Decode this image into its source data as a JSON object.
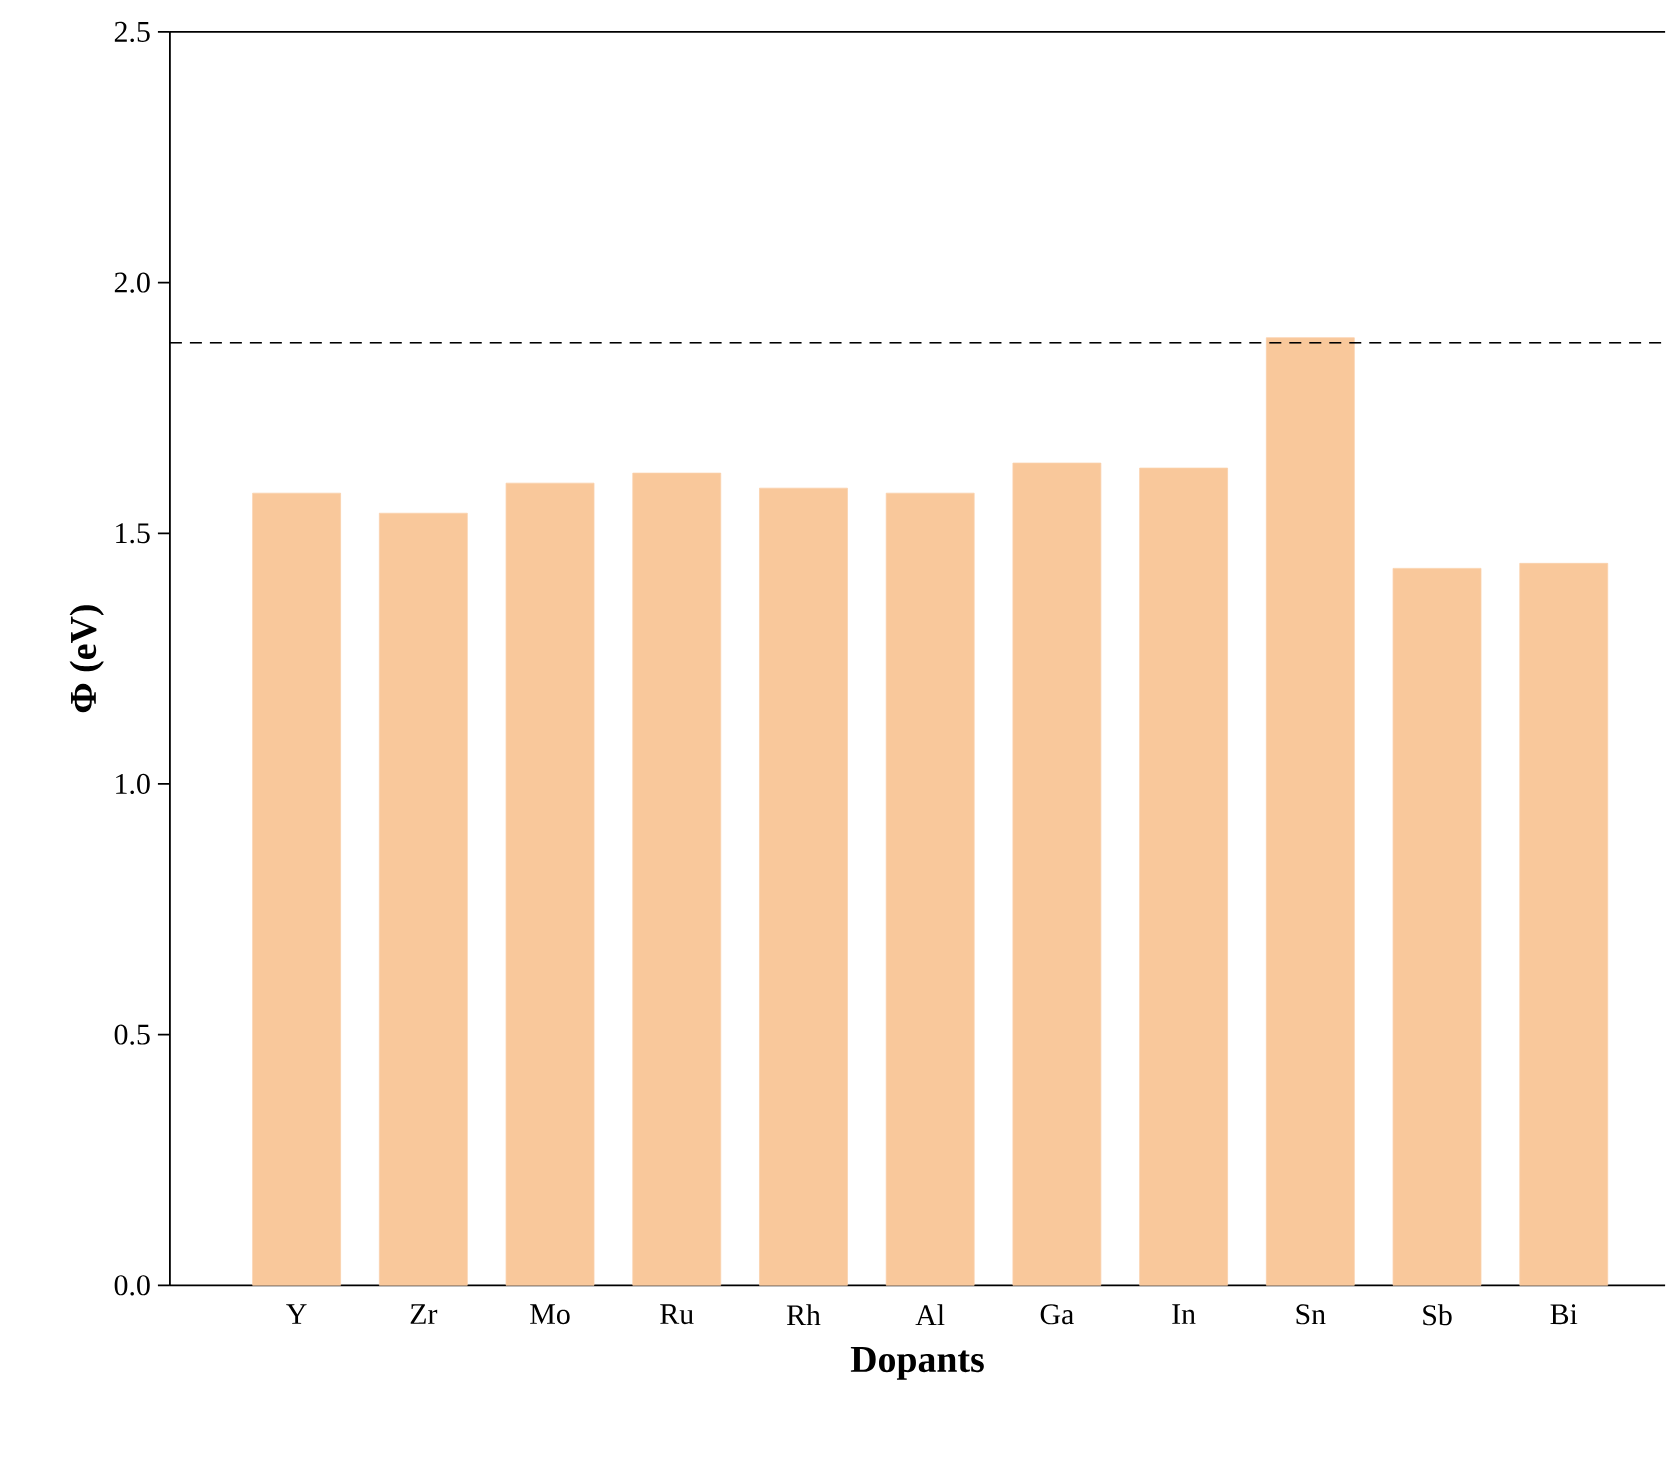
{
  "chart_data": {
    "type": "bar",
    "xlabel": "Dopants",
    "ylabel": "Φ (eV)",
    "categories": [
      "Y",
      "Zr",
      "Mo",
      "Ru",
      "Rh",
      "Al",
      "Ga",
      "In",
      "Sn",
      "Sb",
      "Bi"
    ],
    "values": [
      1.58,
      1.54,
      1.6,
      1.62,
      1.59,
      1.58,
      1.64,
      1.63,
      1.89,
      1.43,
      1.44
    ],
    "color": "#f9c89b",
    "ylim": [
      0,
      2.5
    ],
    "yticks": [
      {
        "value": 0,
        "label": "0.0"
      },
      {
        "value": 0.5,
        "label": "0.5"
      },
      {
        "value": 1.0,
        "label": "1.0"
      },
      {
        "value": 1.5,
        "label": "1.5"
      },
      {
        "value": 2.0,
        "label": "2.0"
      },
      {
        "value": 2.5,
        "label": "2.5"
      }
    ],
    "ref_lines": [
      {
        "axis": "y",
        "value": 1.88,
        "color": "#000000",
        "line_style": "dashed"
      }
    ]
  }
}
